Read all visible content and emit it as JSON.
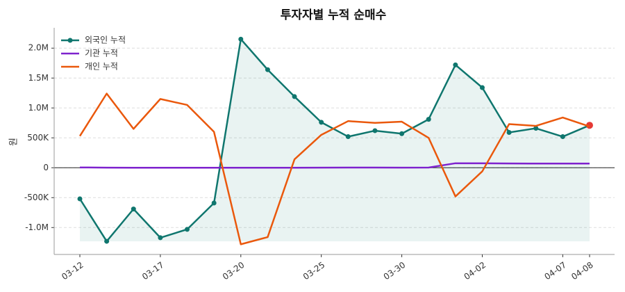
{
  "chart_data": {
    "type": "line",
    "title": "투자자별 누적 순매수",
    "y_label": "원",
    "categories": [
      "03-12",
      null,
      null,
      "03-17",
      null,
      null,
      "03-20",
      null,
      null,
      "03-25",
      null,
      null,
      "03-30",
      null,
      null,
      "04-02",
      null,
      null,
      "04-07",
      "04-08"
    ],
    "series": [
      {
        "name": "외국인 누적",
        "color": "#0f766e",
        "markers": true,
        "fill": true,
        "values": [
          -520000,
          -1230000,
          -690000,
          -1170000,
          -1030000,
          -590000,
          2150000,
          1640000,
          1190000,
          760000,
          520000,
          620000,
          570000,
          810000,
          1720000,
          1340000,
          590000,
          660000,
          520000,
          710000
        ]
      },
      {
        "name": "기관 누적",
        "color": "#7e22ce",
        "values": [
          5000,
          2000,
          1000,
          0,
          0,
          0,
          0,
          0,
          1000,
          2000,
          3000,
          3000,
          2000,
          3000,
          75000,
          75000,
          72000,
          70000,
          70000,
          70000
        ]
      },
      {
        "name": "개인 누적",
        "color": "#ea580c",
        "values": [
          530000,
          1240000,
          650000,
          1150000,
          1050000,
          600000,
          -1280000,
          -1160000,
          140000,
          550000,
          780000,
          750000,
          770000,
          500000,
          -480000,
          -60000,
          730000,
          700000,
          840000,
          690000
        ]
      }
    ],
    "ylim": [
      -1450000,
      2340000
    ],
    "yticks": [
      {
        "value": -1000000,
        "label": "-1.0M"
      },
      {
        "value": -500000,
        "label": "-500K"
      },
      0,
      {
        "value": 500000,
        "label": "500K"
      },
      {
        "value": 1000000,
        "label": "1.0M"
      },
      {
        "value": 1500000,
        "label": "1.5M"
      },
      {
        "value": 2000000,
        "label": "2.0M"
      }
    ],
    "grid": true,
    "legend": "upper-left",
    "end_marker_color": "#e53935"
  }
}
